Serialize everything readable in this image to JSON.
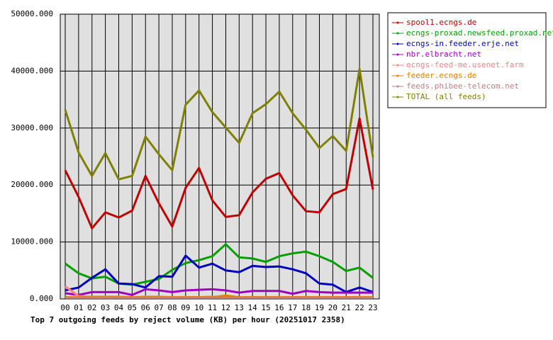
{
  "chart_data": {
    "type": "line",
    "title": "Top 7 outgoing feeds by reject volume (KB) per hour (20251017 2358)",
    "categories": [
      "00",
      "01",
      "02",
      "03",
      "04",
      "05",
      "06",
      "07",
      "08",
      "09",
      "10",
      "11",
      "12",
      "13",
      "14",
      "15",
      "16",
      "17",
      "18",
      "19",
      "20",
      "21",
      "22",
      "23"
    ],
    "ylim": [
      0,
      50000
    ],
    "yticks": [
      {
        "value": 0,
        "label": "0.000"
      },
      {
        "value": 10000,
        "label": "10000.000"
      },
      {
        "value": 20000,
        "label": "20000.000"
      },
      {
        "value": 30000,
        "label": "30000.000"
      },
      {
        "value": 40000,
        "label": "40000.000"
      },
      {
        "value": 50000,
        "label": "50000.000"
      }
    ],
    "grid": true,
    "legend": "top-right",
    "series": [
      {
        "name": "spool1.ecngs.de",
        "color": "#c00000",
        "values": [
          22600,
          17900,
          12400,
          15200,
          14300,
          15500,
          21600,
          16800,
          12700,
          19500,
          23000,
          17300,
          14400,
          14700,
          18700,
          21100,
          22100,
          18200,
          15400,
          15200,
          18400,
          19300,
          31700,
          19200
        ]
      },
      {
        "name": "ecngs-proxad.newsfeed.proxad.net",
        "color": "#00a000",
        "values": [
          6200,
          4500,
          3600,
          3900,
          2700,
          2500,
          3000,
          3500,
          5100,
          6300,
          6800,
          7500,
          9600,
          7300,
          7100,
          6500,
          7500,
          8000,
          8300,
          7500,
          6500,
          4900,
          5500,
          3700
        ]
      },
      {
        "name": "ecngs-in.feeder.erje.net",
        "color": "#0000c0",
        "values": [
          1500,
          2000,
          3700,
          5200,
          2700,
          2600,
          2000,
          4000,
          3900,
          7600,
          5500,
          6200,
          5000,
          4700,
          5800,
          5600,
          5700,
          5200,
          4500,
          2700,
          2500,
          1200,
          2000,
          1200
        ]
      },
      {
        "name": "nbr.elbracht.net",
        "color": "#a000c0",
        "values": [
          1000,
          700,
          1200,
          1200,
          1200,
          700,
          1700,
          1500,
          1200,
          1500,
          1600,
          1700,
          1500,
          1100,
          1400,
          1400,
          1400,
          900,
          1400,
          1200,
          1100,
          1100,
          1100,
          1100
        ]
      },
      {
        "name": "ecngs-feed-me.usenet.farm",
        "color": "#ff8080",
        "values": [
          2200,
          500,
          400,
          400,
          400,
          300,
          400,
          400,
          300,
          300,
          300,
          400,
          300,
          300,
          300,
          300,
          300,
          300,
          300,
          300,
          300,
          300,
          300,
          300
        ]
      },
      {
        "name": "feeder.ecngs.de",
        "color": "#e08000",
        "values": [
          300,
          300,
          300,
          300,
          300,
          300,
          300,
          300,
          300,
          300,
          300,
          300,
          600,
          300,
          300,
          300,
          300,
          300,
          300,
          300,
          300,
          300,
          300,
          300
        ]
      },
      {
        "name": "feeds.phibee-telecom.net",
        "color": "#c08080",
        "values": [
          200,
          200,
          200,
          200,
          200,
          200,
          200,
          200,
          200,
          200,
          200,
          200,
          200,
          200,
          200,
          200,
          200,
          200,
          200,
          200,
          200,
          200,
          200,
          200
        ]
      },
      {
        "name": "TOTAL (all feeds)",
        "color": "#808000",
        "values": [
          33200,
          25700,
          21600,
          25600,
          21000,
          21600,
          28500,
          25400,
          22600,
          34100,
          36600,
          32800,
          30100,
          27400,
          32600,
          34200,
          36400,
          32600,
          29700,
          26500,
          28600,
          26000,
          40400,
          24900
        ]
      }
    ]
  }
}
